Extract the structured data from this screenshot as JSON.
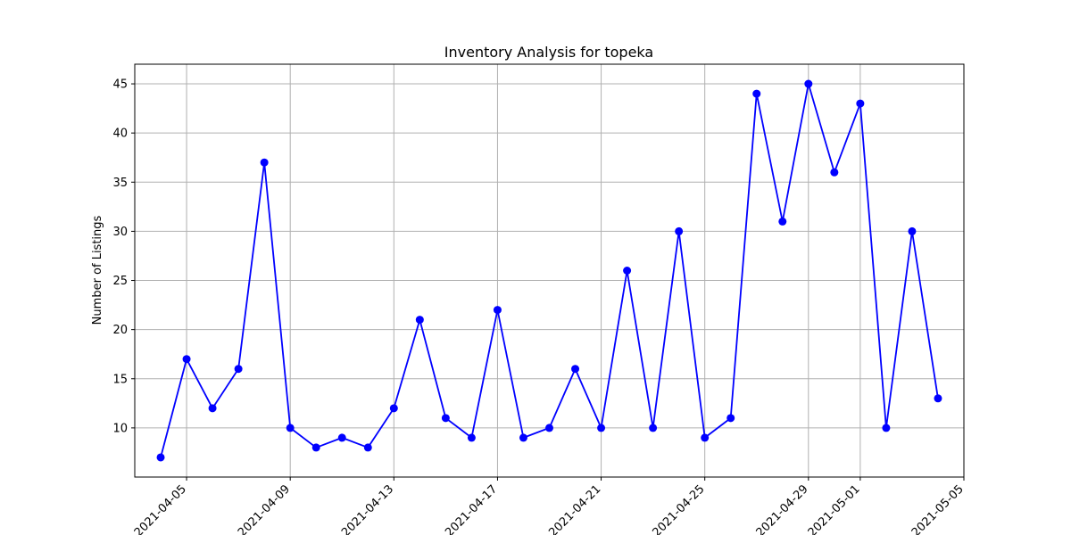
{
  "chart_data": {
    "type": "line",
    "title": "Inventory Analysis for topeka",
    "xlabel": "",
    "ylabel": "Number of Listings",
    "x": [
      "2021-04-04",
      "2021-04-05",
      "2021-04-06",
      "2021-04-07",
      "2021-04-08",
      "2021-04-09",
      "2021-04-10",
      "2021-04-11",
      "2021-04-12",
      "2021-04-13",
      "2021-04-14",
      "2021-04-15",
      "2021-04-16",
      "2021-04-17",
      "2021-04-18",
      "2021-04-19",
      "2021-04-20",
      "2021-04-21",
      "2021-04-22",
      "2021-04-23",
      "2021-04-24",
      "2021-04-25",
      "2021-04-26",
      "2021-04-27",
      "2021-04-28",
      "2021-04-29",
      "2021-04-30",
      "2021-05-01",
      "2021-05-02",
      "2021-05-03",
      "2021-05-04"
    ],
    "series": [
      {
        "values": [
          7,
          17,
          12,
          16,
          37,
          10,
          8,
          9,
          8,
          12,
          21,
          11,
          9,
          22,
          9,
          10,
          16,
          10,
          26,
          10,
          30,
          9,
          11,
          44,
          31,
          45,
          36,
          43,
          10,
          30,
          13
        ],
        "color": "#0000ff",
        "marker": "circle"
      }
    ],
    "xticks": [
      "2021-04-05",
      "2021-04-09",
      "2021-04-13",
      "2021-04-17",
      "2021-04-21",
      "2021-04-25",
      "2021-04-29",
      "2021-05-01",
      "2021-05-05"
    ],
    "yticks": [
      10,
      15,
      20,
      25,
      30,
      35,
      40,
      45
    ],
    "xlim": [
      "2021-04-03",
      "2021-05-05"
    ],
    "ylim": [
      5,
      47
    ],
    "grid": true
  }
}
